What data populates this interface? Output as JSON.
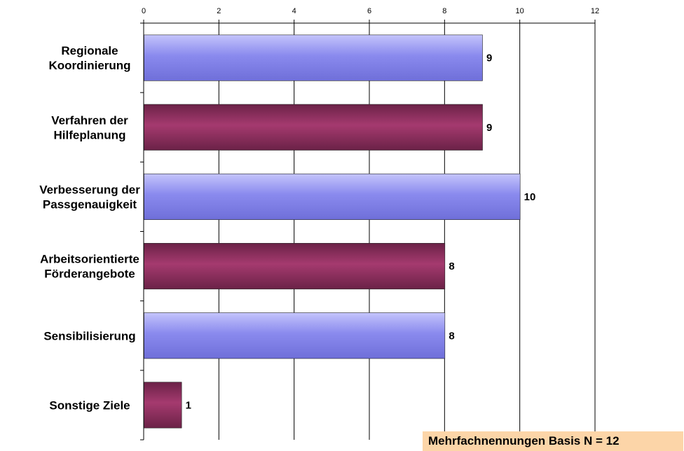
{
  "chart_data": {
    "type": "bar",
    "orientation": "horizontal",
    "categories": [
      [
        "Regionale",
        "Koordinierung"
      ],
      [
        "Verfahren der",
        "Hilfeplanung"
      ],
      [
        "Verbesserung der",
        "Passgenauigkeit"
      ],
      [
        "Arbeitsorientierte",
        "Förderangebote"
      ],
      [
        "Sensibilisierung"
      ],
      [
        "Sonstige Ziele"
      ]
    ],
    "values": [
      9,
      9,
      10,
      8,
      8,
      1
    ],
    "value_labels": [
      "9",
      "9",
      "10",
      "8",
      "8",
      "1"
    ],
    "xlim": [
      0,
      12
    ],
    "x_ticks": [
      0,
      2,
      4,
      6,
      8,
      10,
      12
    ],
    "x_axis_position": "top",
    "grid": true,
    "legend": "none",
    "colors": {
      "bar_alternating": [
        "#9a9af0",
        "#993366"
      ]
    }
  },
  "note": "Mehrfachnennungen Basis N = 12"
}
